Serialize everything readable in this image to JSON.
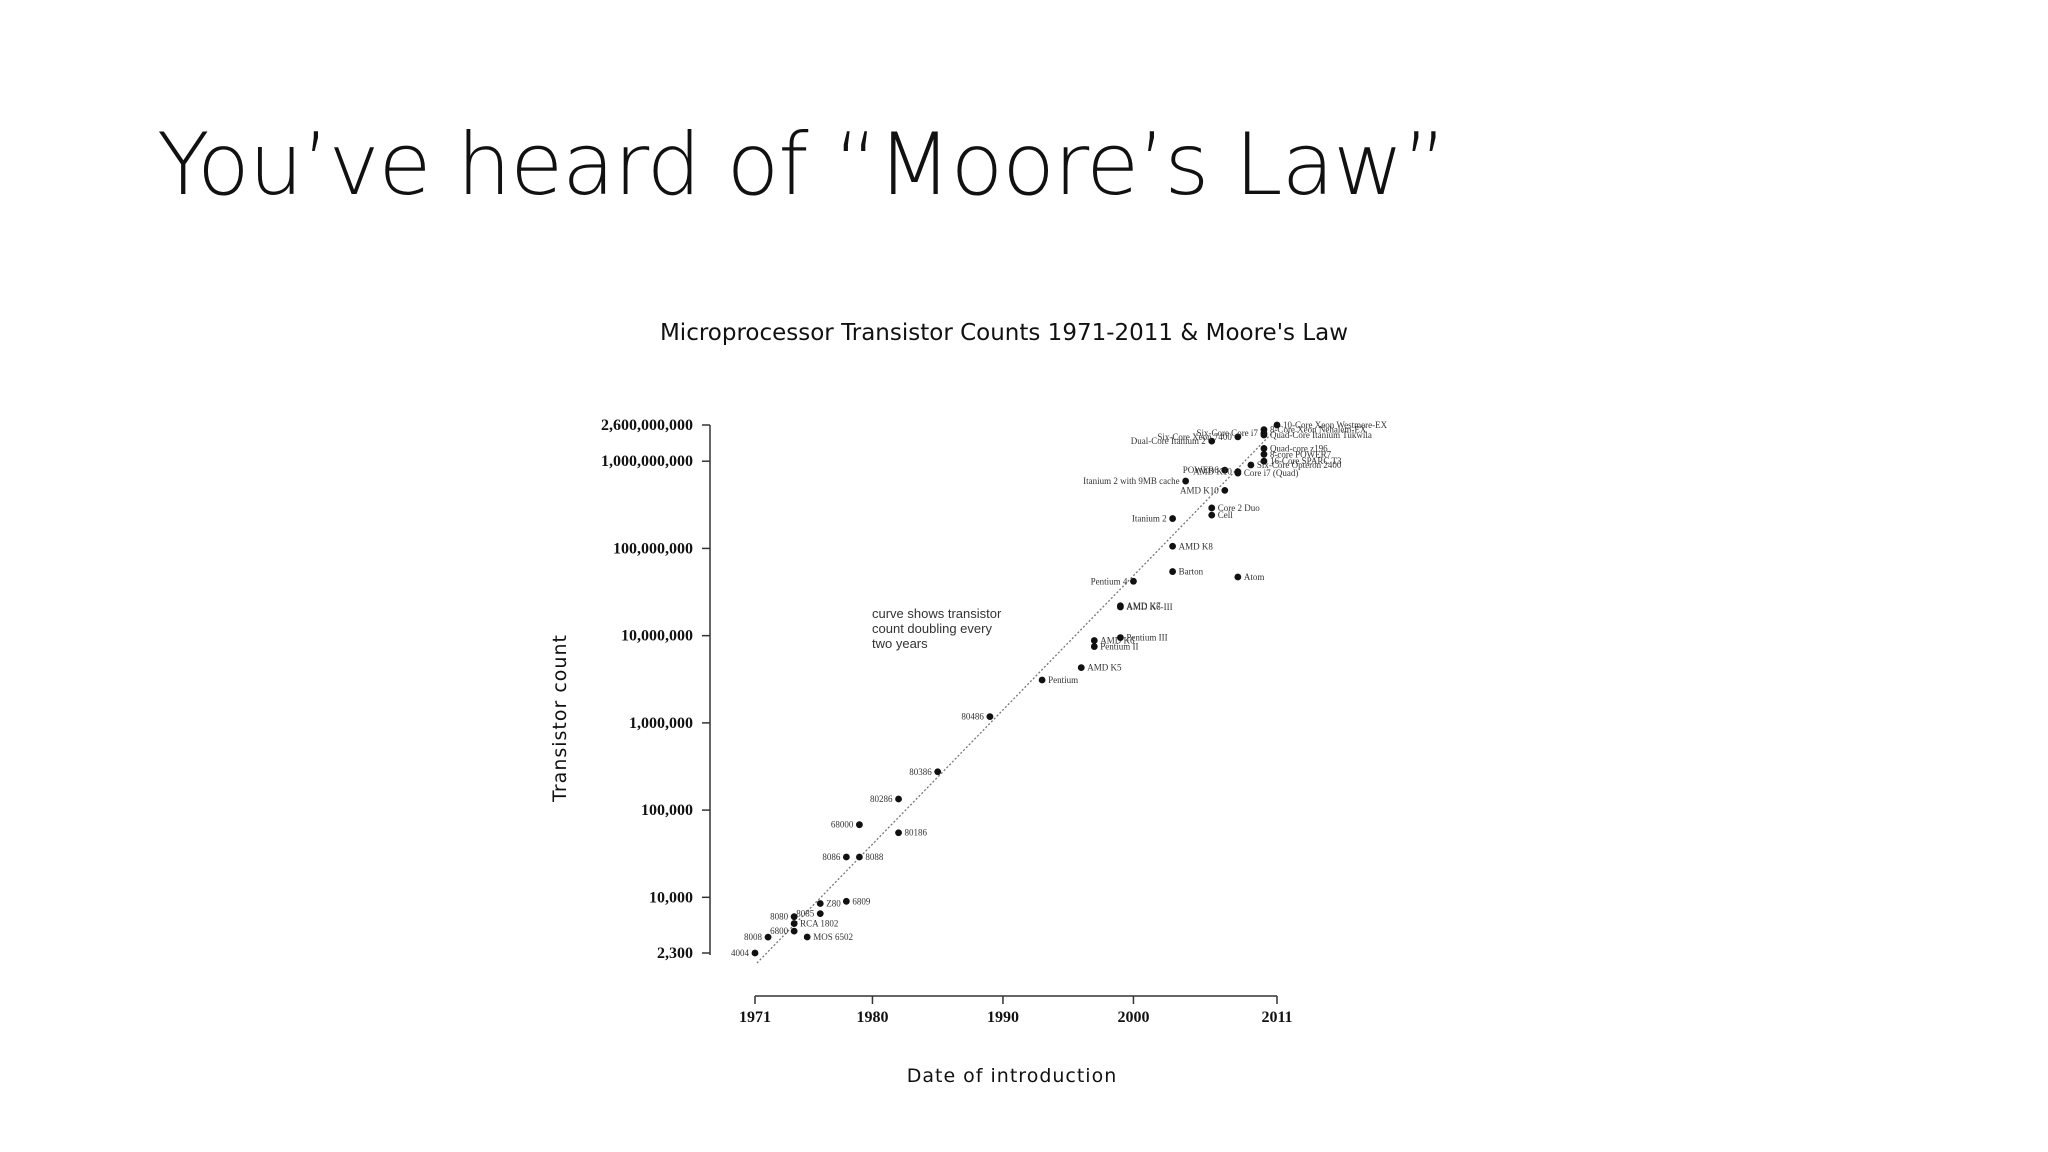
{
  "slide": {
    "title": "You’ve heard of “Moore’s Law”"
  },
  "chart_data": {
    "type": "scatter",
    "title": "Microprocessor Transistor Counts 1971-2011 & Moore's Law",
    "xlabel": "Date of introduction",
    "ylabel": "Transistor count",
    "y_scale": "log",
    "xlim": [
      1971,
      2011
    ],
    "ylim": [
      2300,
      2600000000
    ],
    "x_ticks": [
      1971,
      1980,
      1990,
      2000,
      2011
    ],
    "y_ticks": [
      {
        "value": 2300,
        "label": "2,300"
      },
      {
        "value": 10000,
        "label": "10,000"
      },
      {
        "value": 100000,
        "label": "100,000"
      },
      {
        "value": 1000000,
        "label": "1,000,000"
      },
      {
        "value": 10000000,
        "label": "10,000,000"
      },
      {
        "value": 100000000,
        "label": "100,000,000"
      },
      {
        "value": 1000000000,
        "label": "1,000,000,000"
      },
      {
        "value": 2600000000,
        "label": "2,600,000,000"
      }
    ],
    "grid": false,
    "annotation": [
      "curve shows transistor",
      "count doubling every",
      "two years"
    ],
    "trend": {
      "name": "",
      "from": {
        "x": 1971,
        "y": 2300
      },
      "to": {
        "x": 2011,
        "y": 2600000000
      }
    },
    "points": [
      {
        "name": "4004",
        "x": 1971,
        "y": 2300,
        "side": "left"
      },
      {
        "name": "8008",
        "x": 1972,
        "y": 3500,
        "side": "left"
      },
      {
        "name": "8080",
        "x": 1974,
        "y": 6000,
        "side": "left"
      },
      {
        "name": "RCA 1802",
        "x": 1974,
        "y": 5000,
        "side": "right"
      },
      {
        "name": "MOS 6502",
        "x": 1975,
        "y": 3510,
        "side": "right"
      },
      {
        "name": "8085",
        "x": 1976,
        "y": 6500,
        "side": "left"
      },
      {
        "name": "6800",
        "x": 1974,
        "y": 4100,
        "side": "left"
      },
      {
        "name": "Z80",
        "x": 1976,
        "y": 8500,
        "side": "right"
      },
      {
        "name": "6809",
        "x": 1978,
        "y": 9000,
        "side": "right"
      },
      {
        "name": "8086",
        "x": 1978,
        "y": 29000,
        "side": "left"
      },
      {
        "name": "8088",
        "x": 1979,
        "y": 29000,
        "side": "right"
      },
      {
        "name": "68000",
        "x": 1979,
        "y": 68000,
        "side": "left"
      },
      {
        "name": "80186",
        "x": 1982,
        "y": 55000,
        "side": "right"
      },
      {
        "name": "80286",
        "x": 1982,
        "y": 134000,
        "side": "left"
      },
      {
        "name": "80386",
        "x": 1985,
        "y": 275000,
        "side": "left"
      },
      {
        "name": "80486",
        "x": 1989,
        "y": 1180000,
        "side": "left"
      },
      {
        "name": "Pentium",
        "x": 1993,
        "y": 3100000,
        "side": "right"
      },
      {
        "name": "AMD K5",
        "x": 1996,
        "y": 4300000,
        "side": "right"
      },
      {
        "name": "Pentium II",
        "x": 1997,
        "y": 7500000,
        "side": "right"
      },
      {
        "name": "AMD K6",
        "x": 1997,
        "y": 8800000,
        "side": "right"
      },
      {
        "name": "Pentium III",
        "x": 1999,
        "y": 9500000,
        "side": "right"
      },
      {
        "name": "AMD K6-III",
        "x": 1999,
        "y": 21300000,
        "side": "right"
      },
      {
        "name": "AMD K7",
        "x": 1999,
        "y": 22000000,
        "side": "right"
      },
      {
        "name": "Pentium 4",
        "x": 2000,
        "y": 42000000,
        "side": "left"
      },
      {
        "name": "Barton",
        "x": 2003,
        "y": 54300000,
        "side": "right"
      },
      {
        "name": "AMD K8",
        "x": 2003,
        "y": 105900000,
        "side": "right"
      },
      {
        "name": "Itanium 2",
        "x": 2003,
        "y": 220000000,
        "side": "left"
      },
      {
        "name": "Atom",
        "x": 2008,
        "y": 47000000,
        "side": "right"
      },
      {
        "name": "Cell",
        "x": 2006,
        "y": 241000000,
        "side": "right"
      },
      {
        "name": "Core 2 Duo",
        "x": 2006,
        "y": 291000000,
        "side": "right"
      },
      {
        "name": "AMD K10",
        "x": 2007,
        "y": 463000000,
        "side": "left"
      },
      {
        "name": "Core i7 (Quad)",
        "x": 2008,
        "y": 731000000,
        "side": "right"
      },
      {
        "name": "Itanium 2 with 9MB cache",
        "x": 2004,
        "y": 592000000,
        "side": "left"
      },
      {
        "name": "POWER6",
        "x": 2007,
        "y": 789000000,
        "side": "left"
      },
      {
        "name": "AMD K10",
        "x": 2008,
        "y": 758000000,
        "side": "left"
      },
      {
        "name": "Six-Core Opteron 2400",
        "x": 2009,
        "y": 904000000,
        "side": "right"
      },
      {
        "name": "Dual-Core Itanium 2",
        "x": 2006,
        "y": 1700000000,
        "side": "left"
      },
      {
        "name": "Six-Core Xeon 7400",
        "x": 2008,
        "y": 1900000000,
        "side": "left"
      },
      {
        "name": "Six-Core Core i7",
        "x": 2010,
        "y": 2100000000,
        "side": "left"
      },
      {
        "name": "8-Core Xeon Nehalem-EX",
        "x": 2010,
        "y": 2300000000,
        "side": "right"
      },
      {
        "name": "Quad-Core Itanium Tukwila",
        "x": 2010,
        "y": 2000000000,
        "side": "right"
      },
      {
        "name": "Quad-core z196",
        "x": 2010,
        "y": 1400000000,
        "side": "right"
      },
      {
        "name": "8-core POWER7",
        "x": 2010,
        "y": 1200000000,
        "side": "right"
      },
      {
        "name": "10-Core Xeon Westmere-EX",
        "x": 2011,
        "y": 2600000000,
        "side": "right"
      },
      {
        "name": "16-Core SPARC T3",
        "x": 2010,
        "y": 1000000000,
        "side": "right"
      }
    ]
  }
}
